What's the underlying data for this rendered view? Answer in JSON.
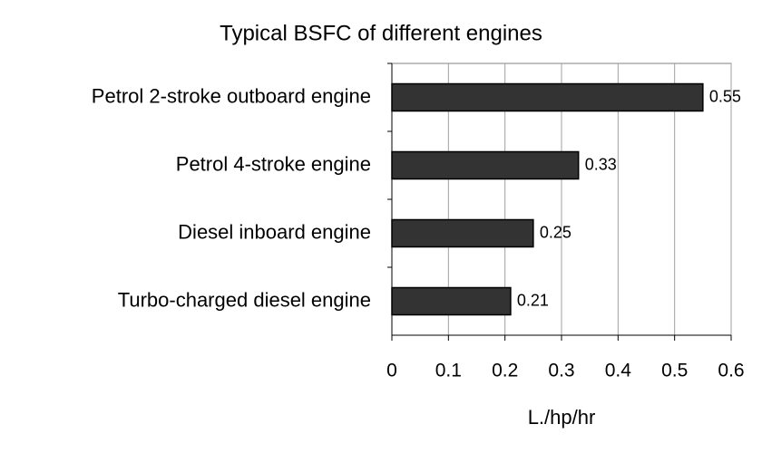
{
  "chart_data": {
    "type": "bar",
    "title": "Typical BSFC of different engines",
    "categories": [
      "Petrol 2-stroke outboard engine",
      "Petrol 4-stroke engine",
      "Diesel inboard engine",
      "Turbo-charged diesel engine"
    ],
    "values": [
      0.55,
      0.33,
      0.25,
      0.21
    ],
    "color": "#333333",
    "xlabel": "L./hp/hr",
    "xlim": [
      0,
      0.6
    ],
    "xticks": [
      0,
      0.1,
      0.2,
      0.3,
      0.4,
      0.5,
      0.6
    ],
    "grid": true
  }
}
